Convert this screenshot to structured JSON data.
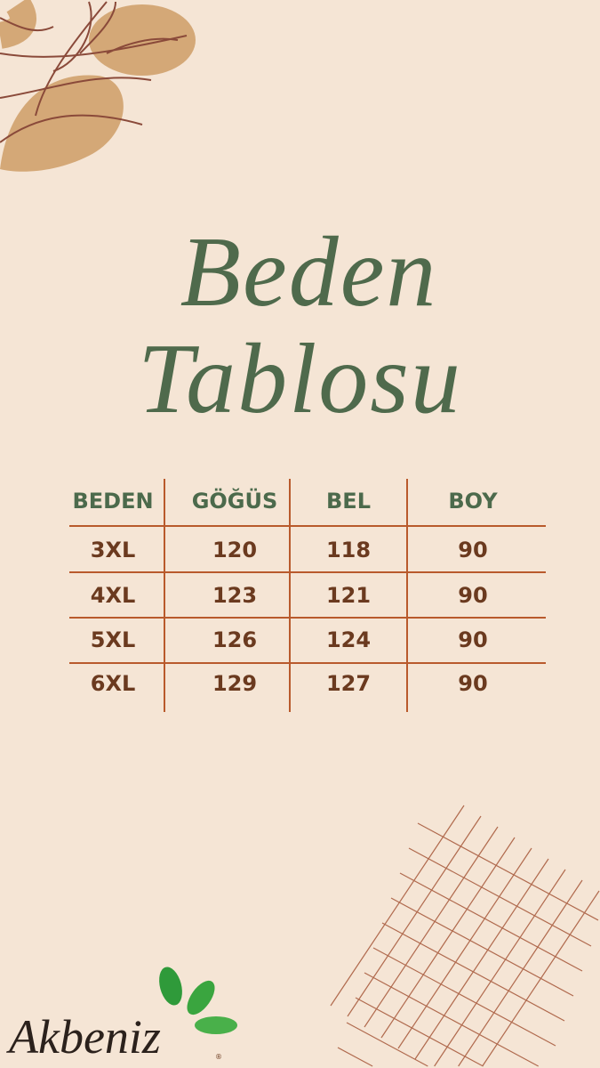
{
  "title": {
    "line1": "Beden",
    "line2": "Tablosu"
  },
  "table": {
    "headers": [
      "BEDEN",
      "GÖĞÜS",
      "BEL",
      "BOY"
    ],
    "rows": [
      [
        "3XL",
        "120",
        "118",
        "90"
      ],
      [
        "4XL",
        "123",
        "121",
        "90"
      ],
      [
        "5XL",
        "126",
        "124",
        "90"
      ],
      [
        "6XL",
        "129",
        "127",
        "90"
      ]
    ]
  },
  "logo": {
    "text": "Akbeniz",
    "registered": "®"
  },
  "colors": {
    "background": "#f5e5d5",
    "header": "#4c6a4c",
    "values": "#6b3a1f",
    "lines": "#b95a2c",
    "leaf": "#2f9a3a"
  },
  "decorations": [
    "branch-blob-icon",
    "grid-pattern-icon",
    "leaf-icon"
  ]
}
